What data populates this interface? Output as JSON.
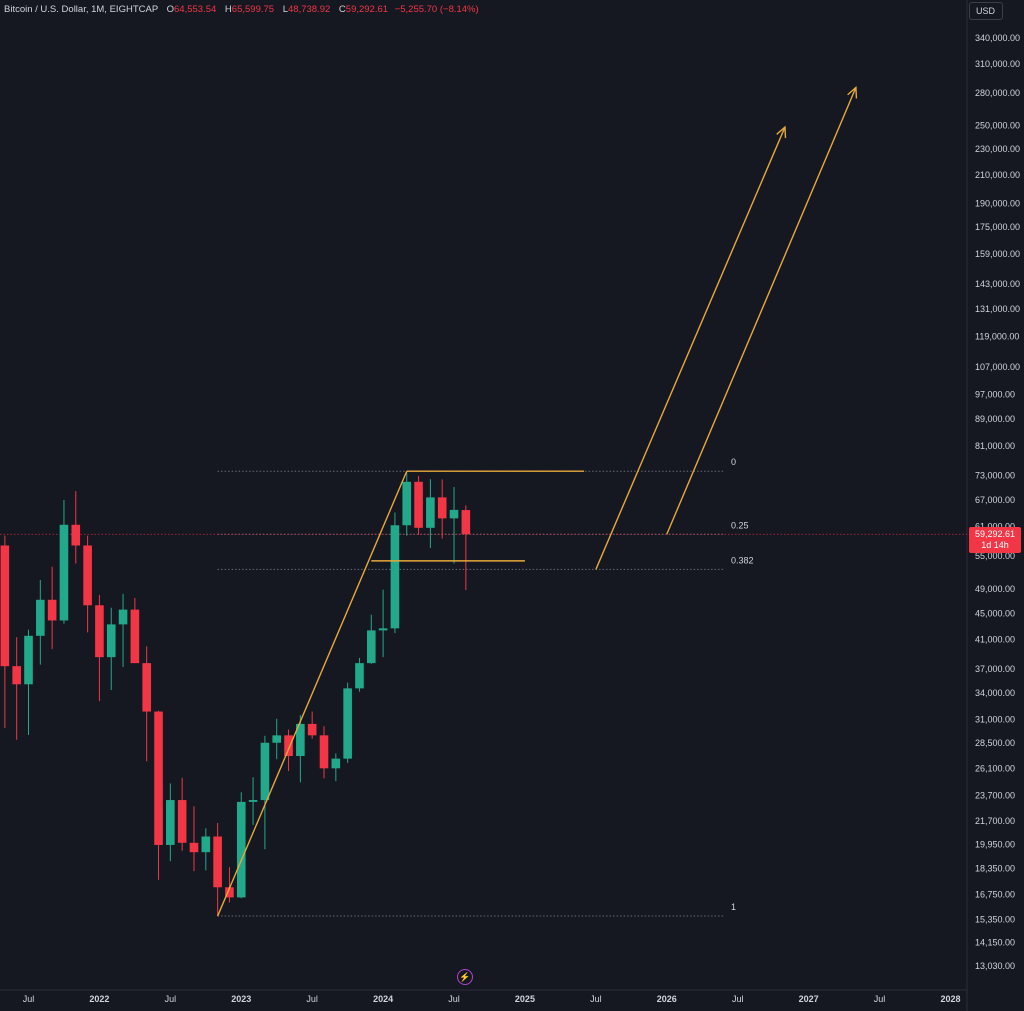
{
  "header": {
    "symbol": "Bitcoin / U.S. Dollar, 1M, EIGHTCAP",
    "o_label": "O",
    "o_value": "64,553.54",
    "h_label": "H",
    "h_value": "65,599.75",
    "l_label": "L",
    "l_value": "48,738.92",
    "c_label": "C",
    "c_value": "59,292.61",
    "change": "−5,255.70 (−8.14%)"
  },
  "currency_button": "USD",
  "price_tag": {
    "price": "59,292.61",
    "countdown": "1d 14h"
  },
  "icons": {
    "bolt": "lightning-icon"
  },
  "colors": {
    "background": "#151821",
    "up": "#22a98b",
    "down": "#f23645",
    "drawing": "#e8a93a",
    "text": "#d1d4dc",
    "fib_line": "#666a75"
  },
  "chart_data": {
    "type": "candlestick",
    "timeframe": "1M",
    "yscale": "log",
    "ylim": [
      12600,
      355000
    ],
    "y_ticks": [
      "13,030.00",
      "14,150.00",
      "15,350.00",
      "16,750.00",
      "18,350.00",
      "19,950.00",
      "21,700.00",
      "23,700.00",
      "26,100.00",
      "28,500.00",
      "31,000.00",
      "34,000.00",
      "37,000.00",
      "41,000.00",
      "45,000.00",
      "49,000.00",
      "55,000.00",
      "61,000.00",
      "67,000.00",
      "73,000.00",
      "81,000.00",
      "89,000.00",
      "97,000.00",
      "107,000.00",
      "119,000.00",
      "131,000.00",
      "143,000.00",
      "159,000.00",
      "175,000.00",
      "190,000.00",
      "210,000.00",
      "230,000.00",
      "250,000.00",
      "280,000.00",
      "310,000.00",
      "340,000.00"
    ],
    "x_ticks": [
      {
        "label": "Jul",
        "date": "2021-07"
      },
      {
        "label": "2022",
        "date": "2022-01"
      },
      {
        "label": "Jul",
        "date": "2022-07"
      },
      {
        "label": "2023",
        "date": "2023-01"
      },
      {
        "label": "Jul",
        "date": "2023-07"
      },
      {
        "label": "2024",
        "date": "2024-01"
      },
      {
        "label": "Jul",
        "date": "2024-07"
      },
      {
        "label": "2025",
        "date": "2025-01"
      },
      {
        "label": "Jul",
        "date": "2025-07"
      },
      {
        "label": "2026",
        "date": "2026-01"
      },
      {
        "label": "Jul",
        "date": "2026-07"
      },
      {
        "label": "2027",
        "date": "2027-01"
      },
      {
        "label": "Jul",
        "date": "2027-07"
      },
      {
        "label": "2028",
        "date": "2028-01"
      }
    ],
    "candles": [
      {
        "date": "2021-05",
        "o": 57000,
        "h": 59000,
        "l": 30000,
        "c": 37300
      },
      {
        "date": "2021-06",
        "o": 37300,
        "h": 41300,
        "l": 28800,
        "c": 35000
      },
      {
        "date": "2021-07",
        "o": 35000,
        "h": 42400,
        "l": 29300,
        "c": 41500
      },
      {
        "date": "2021-08",
        "o": 41500,
        "h": 50500,
        "l": 37500,
        "c": 47100
      },
      {
        "date": "2021-09",
        "o": 47100,
        "h": 52900,
        "l": 39600,
        "c": 43800
      },
      {
        "date": "2021-10",
        "o": 43800,
        "h": 66900,
        "l": 43300,
        "c": 61300
      },
      {
        "date": "2021-11",
        "o": 61300,
        "h": 69000,
        "l": 53500,
        "c": 57000
      },
      {
        "date": "2021-12",
        "o": 57000,
        "h": 59000,
        "l": 42000,
        "c": 46200
      },
      {
        "date": "2022-01",
        "o": 46200,
        "h": 47900,
        "l": 33000,
        "c": 38500
      },
      {
        "date": "2022-02",
        "o": 38500,
        "h": 45800,
        "l": 34300,
        "c": 43200
      },
      {
        "date": "2022-03",
        "o": 43200,
        "h": 48100,
        "l": 37200,
        "c": 45500
      },
      {
        "date": "2022-04",
        "o": 45500,
        "h": 47400,
        "l": 37700,
        "c": 37700
      },
      {
        "date": "2022-05",
        "o": 37700,
        "h": 40000,
        "l": 26700,
        "c": 31800
      },
      {
        "date": "2022-06",
        "o": 31800,
        "h": 31900,
        "l": 17600,
        "c": 19900
      },
      {
        "date": "2022-07",
        "o": 19900,
        "h": 24700,
        "l": 18800,
        "c": 23300
      },
      {
        "date": "2022-08",
        "o": 23300,
        "h": 25200,
        "l": 19500,
        "c": 20050
      },
      {
        "date": "2022-09",
        "o": 20050,
        "h": 22800,
        "l": 18150,
        "c": 19400
      },
      {
        "date": "2022-10",
        "o": 19400,
        "h": 21100,
        "l": 18200,
        "c": 20500
      },
      {
        "date": "2022-11",
        "o": 20500,
        "h": 21500,
        "l": 15500,
        "c": 17150
      },
      {
        "date": "2022-12",
        "o": 17150,
        "h": 18400,
        "l": 16250,
        "c": 16550
      },
      {
        "date": "2023-01",
        "o": 16550,
        "h": 23950,
        "l": 16500,
        "c": 23150
      },
      {
        "date": "2023-02",
        "o": 23150,
        "h": 25250,
        "l": 21350,
        "c": 23300
      },
      {
        "date": "2023-03",
        "o": 23300,
        "h": 29200,
        "l": 19600,
        "c": 28500
      },
      {
        "date": "2023-04",
        "o": 28500,
        "h": 31000,
        "l": 26900,
        "c": 29250
      },
      {
        "date": "2023-05",
        "o": 29250,
        "h": 29850,
        "l": 25800,
        "c": 27200
      },
      {
        "date": "2023-06",
        "o": 27200,
        "h": 31400,
        "l": 24800,
        "c": 30450
      },
      {
        "date": "2023-07",
        "o": 30450,
        "h": 31800,
        "l": 28900,
        "c": 29250
      },
      {
        "date": "2023-08",
        "o": 29250,
        "h": 30200,
        "l": 25150,
        "c": 26050
      },
      {
        "date": "2023-09",
        "o": 26050,
        "h": 27450,
        "l": 24900,
        "c": 26950
      },
      {
        "date": "2023-10",
        "o": 26950,
        "h": 35200,
        "l": 26550,
        "c": 34500
      },
      {
        "date": "2023-11",
        "o": 34500,
        "h": 38400,
        "l": 34100,
        "c": 37700
      },
      {
        "date": "2023-12",
        "o": 37700,
        "h": 44700,
        "l": 37600,
        "c": 42300
      },
      {
        "date": "2024-01",
        "o": 42300,
        "h": 48800,
        "l": 38500,
        "c": 42600
      },
      {
        "date": "2024-02",
        "o": 42600,
        "h": 64000,
        "l": 41900,
        "c": 61200
      },
      {
        "date": "2024-03",
        "o": 61200,
        "h": 73800,
        "l": 59000,
        "c": 71300
      },
      {
        "date": "2024-04",
        "o": 71300,
        "h": 72800,
        "l": 59200,
        "c": 60650
      },
      {
        "date": "2024-05",
        "o": 60650,
        "h": 71950,
        "l": 56500,
        "c": 67500
      },
      {
        "date": "2024-06",
        "o": 67500,
        "h": 71900,
        "l": 58400,
        "c": 62700
      },
      {
        "date": "2024-07",
        "o": 62700,
        "h": 70000,
        "l": 53500,
        "c": 64600
      },
      {
        "date": "2024-08",
        "o": 64553.54,
        "h": 65599.75,
        "l": 48738.92,
        "c": 59292.61
      }
    ],
    "fib_levels": [
      {
        "label": "0",
        "value": 74000
      },
      {
        "label": "0.25",
        "value": 59292
      },
      {
        "label": "0.382",
        "value": 52400
      },
      {
        "label": "1",
        "value": 15500
      }
    ],
    "trend_lines": [
      {
        "from": {
          "date": "2022-11",
          "value": 15500
        },
        "to": {
          "date": "2024-03",
          "value": 74000
        },
        "arrow": false
      },
      {
        "from": {
          "date": "2024-03",
          "value": 74000
        },
        "to": {
          "date": "2025-06",
          "value": 74000
        },
        "arrow": false
      },
      {
        "from": {
          "date": "2023-12",
          "value": 54000
        },
        "to": {
          "date": "2025-01",
          "value": 54000
        },
        "arrow": false
      },
      {
        "from": {
          "date": "2025-07",
          "value": 52400
        },
        "to": {
          "date": "2026-11",
          "value": 248000
        },
        "arrow": true
      },
      {
        "from": {
          "date": "2026-01",
          "value": 59292
        },
        "to": {
          "date": "2027-05",
          "value": 285000
        },
        "arrow": true
      }
    ],
    "current_price": 59292.61
  }
}
